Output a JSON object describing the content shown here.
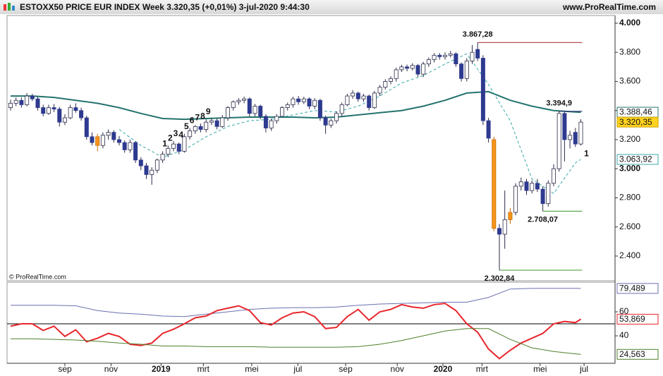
{
  "header": {
    "title": "ESTOXX50 PRICE EUR INDEX Week 3.320,35 (+0,01%) 3-jul-2020 9:44:30",
    "site": "www.ProRealTime.com"
  },
  "chart_data": [
    {
      "type": "candlestick",
      "watermark": "© ProRealTime.com",
      "xlim": [
        -0.65,
        111.3
      ],
      "ylim": [
        2230,
        4053
      ],
      "yticks": [
        {
          "value": 2400,
          "label": "2.400"
        },
        {
          "value": 2600,
          "label": "2.600"
        },
        {
          "value": 2800,
          "label": "2.800"
        },
        {
          "value": 3000,
          "label": "3.000"
        },
        {
          "value": 3200,
          "label": "3.200"
        },
        {
          "value": 3400,
          "label": "3.400"
        },
        {
          "value": 3600,
          "label": "3.600"
        },
        {
          "value": 3800,
          "label": "3.800"
        },
        {
          "value": 4000,
          "label": "4.000"
        }
      ],
      "up_color": "#ffffff",
      "down_color": "#2e3a8f",
      "highlight_color": "#f7941d",
      "highlight": [
        16,
        89,
        92
      ],
      "last_label": "3.320,35",
      "candles": [
        [
          3420,
          3475,
          3400,
          3450
        ],
        [
          3450,
          3490,
          3430,
          3470
        ],
        [
          3470,
          3490,
          3420,
          3440
        ],
        [
          3440,
          3520,
          3430,
          3500
        ],
        [
          3500,
          3515,
          3465,
          3480
        ],
        [
          3480,
          3495,
          3400,
          3420
        ],
        [
          3420,
          3440,
          3360,
          3380
        ],
        [
          3380,
          3440,
          3370,
          3420
        ],
        [
          3420,
          3445,
          3390,
          3410
        ],
        [
          3410,
          3425,
          3290,
          3320
        ],
        [
          3320,
          3375,
          3300,
          3350
        ],
        [
          3350,
          3440,
          3340,
          3420
        ],
        [
          3420,
          3450,
          3385,
          3400
        ],
        [
          3400,
          3420,
          3330,
          3350
        ],
        [
          3350,
          3365,
          3200,
          3220
        ],
        [
          3220,
          3250,
          3160,
          3180
        ],
        [
          3220,
          3240,
          3120,
          3160
        ],
        [
          3160,
          3250,
          3140,
          3230
        ],
        [
          3230,
          3270,
          3200,
          3250
        ],
        [
          3250,
          3265,
          3180,
          3200
        ],
        [
          3200,
          3225,
          3160,
          3180
        ],
        [
          3180,
          3195,
          3110,
          3130
        ],
        [
          3130,
          3200,
          3110,
          3180
        ],
        [
          3180,
          3190,
          3040,
          3060
        ],
        [
          3060,
          3080,
          2990,
          3020
        ],
        [
          3020,
          3040,
          2930,
          2960
        ],
        [
          2960,
          3010,
          2890,
          2990
        ],
        [
          2990,
          3070,
          2970,
          3060
        ],
        [
          3060,
          3120,
          3040,
          3100
        ],
        [
          3100,
          3160,
          3080,
          3140
        ],
        [
          3140,
          3190,
          3120,
          3170
        ],
        [
          3170,
          3180,
          3100,
          3120
        ],
        [
          3120,
          3240,
          3110,
          3220
        ],
        [
          3220,
          3280,
          3200,
          3260
        ],
        [
          3260,
          3300,
          3240,
          3290
        ],
        [
          3290,
          3310,
          3250,
          3270
        ],
        [
          3270,
          3340,
          3250,
          3320
        ],
        [
          3320,
          3350,
          3300,
          3330
        ],
        [
          3330,
          3345,
          3270,
          3290
        ],
        [
          3290,
          3370,
          3280,
          3350
        ],
        [
          3350,
          3430,
          3330,
          3420
        ],
        [
          3420,
          3470,
          3400,
          3460
        ],
        [
          3460,
          3485,
          3440,
          3470
        ],
        [
          3470,
          3495,
          3450,
          3480
        ],
        [
          3480,
          3490,
          3360,
          3380
        ],
        [
          3380,
          3445,
          3360,
          3430
        ],
        [
          3430,
          3440,
          3340,
          3360
        ],
        [
          3360,
          3375,
          3250,
          3280
        ],
        [
          3280,
          3345,
          3260,
          3330
        ],
        [
          3330,
          3375,
          3310,
          3360
        ],
        [
          3360,
          3430,
          3350,
          3420
        ],
        [
          3420,
          3455,
          3400,
          3440
        ],
        [
          3440,
          3495,
          3420,
          3480
        ],
        [
          3480,
          3500,
          3440,
          3460
        ],
        [
          3460,
          3495,
          3445,
          3480
        ],
        [
          3480,
          3490,
          3410,
          3430
        ],
        [
          3430,
          3485,
          3410,
          3470
        ],
        [
          3470,
          3480,
          3330,
          3350
        ],
        [
          3350,
          3365,
          3240,
          3300
        ],
        [
          3300,
          3345,
          3280,
          3330
        ],
        [
          3330,
          3395,
          3310,
          3380
        ],
        [
          3380,
          3455,
          3360,
          3440
        ],
        [
          3440,
          3515,
          3430,
          3500
        ],
        [
          3500,
          3540,
          3480,
          3520
        ],
        [
          3520,
          3530,
          3460,
          3480
        ],
        [
          3480,
          3515,
          3460,
          3500
        ],
        [
          3500,
          3510,
          3400,
          3420
        ],
        [
          3420,
          3535,
          3410,
          3520
        ],
        [
          3520,
          3575,
          3500,
          3560
        ],
        [
          3560,
          3615,
          3545,
          3600
        ],
        [
          3600,
          3635,
          3580,
          3620
        ],
        [
          3620,
          3695,
          3600,
          3680
        ],
        [
          3680,
          3715,
          3665,
          3700
        ],
        [
          3700,
          3715,
          3670,
          3690
        ],
        [
          3690,
          3725,
          3675,
          3710
        ],
        [
          3710,
          3720,
          3630,
          3650
        ],
        [
          3650,
          3735,
          3630,
          3720
        ],
        [
          3720,
          3765,
          3700,
          3750
        ],
        [
          3750,
          3795,
          3730,
          3780
        ],
        [
          3780,
          3795,
          3750,
          3770
        ],
        [
          3770,
          3800,
          3750,
          3780
        ],
        [
          3780,
          3810,
          3765,
          3790
        ],
        [
          3790,
          3800,
          3700,
          3720
        ],
        [
          3720,
          3730,
          3600,
          3620
        ],
        [
          3620,
          3760,
          3600,
          3740
        ],
        [
          3740,
          3850,
          3720,
          3800
        ],
        [
          3820,
          3867.28,
          3740,
          3760
        ],
        [
          3760,
          3780,
          3300,
          3330
        ],
        [
          3330,
          3350,
          3180,
          3210
        ],
        [
          3200,
          3220,
          2570,
          2590
        ],
        [
          2590,
          2620,
          2302.84,
          2550
        ],
        [
          2550,
          2850,
          2450,
          2650
        ],
        [
          2650,
          2730,
          2620,
          2700
        ],
        [
          2700,
          2900,
          2680,
          2880
        ],
        [
          2880,
          2940,
          2850,
          2910
        ],
        [
          2910,
          2930,
          2820,
          2850
        ],
        [
          2850,
          2920,
          2830,
          2900
        ],
        [
          2900,
          2930,
          2840,
          2860
        ],
        [
          2860,
          2880,
          2708.07,
          2760
        ],
        [
          2760,
          2920,
          2740,
          2900
        ],
        [
          2900,
          3030,
          2880,
          3000
        ],
        [
          3000,
          3394.9,
          2980,
          3380
        ],
        [
          3380,
          3390,
          3050,
          3200
        ],
        [
          3200,
          3260,
          3140,
          3230
        ],
        [
          3250,
          3280,
          3150,
          3170
        ],
        [
          3170,
          3340,
          3160,
          3320.35
        ]
      ],
      "series": [
        {
          "color": "#23736e",
          "width": 2,
          "last_label": "3.388,46",
          "x": [
            0,
            4,
            8,
            12,
            16,
            20,
            24,
            28,
            32,
            36,
            40,
            44,
            48,
            52,
            56,
            60,
            64,
            68,
            72,
            76,
            80,
            84,
            88,
            92,
            96,
            100,
            104,
            105
          ],
          "values": [
            3500,
            3500,
            3490,
            3470,
            3450,
            3420,
            3380,
            3345,
            3340,
            3345,
            3350,
            3355,
            3355,
            3355,
            3350,
            3355,
            3370,
            3385,
            3400,
            3430,
            3470,
            3520,
            3530,
            3470,
            3430,
            3400,
            3390,
            3388.46
          ]
        },
        {
          "color": "#3aa8a8",
          "width": 1,
          "dashed": true,
          "last_label": "3.063,92",
          "x": [
            20,
            24,
            28,
            32,
            36,
            40,
            44,
            48,
            52,
            56,
            60,
            64,
            68,
            72,
            76,
            80,
            84,
            88,
            92,
            96,
            100,
            104,
            105
          ],
          "values": [
            3270,
            3160,
            3080,
            3130,
            3220,
            3290,
            3330,
            3340,
            3370,
            3400,
            3390,
            3430,
            3500,
            3590,
            3640,
            3720,
            3790,
            3580,
            3330,
            2930,
            2830,
            3040,
            3063.92
          ]
        }
      ],
      "levels": [
        {
          "value": 3867.28,
          "label": "3.867,28",
          "from": 86,
          "color": "#a0222a",
          "text_color": "#2d2d6e"
        },
        {
          "value": 3394.9,
          "label": "3.394,9",
          "from": 101,
          "color": "#2d2d6e",
          "text_color": "#2d2d6e"
        },
        {
          "value": 2708.07,
          "label": "2.708,07",
          "from": 98,
          "color": "#3c9a2c",
          "text_color": "#2d2d6e"
        },
        {
          "value": 2302.84,
          "label": "2.302,84",
          "from": 90,
          "color": "#3c9a2c",
          "text_color": "#2d2d6e"
        }
      ],
      "counts": [
        {
          "start": 28,
          "values": [
            1,
            2,
            3,
            4,
            5,
            6,
            7,
            8,
            9
          ],
          "color": "#3a3f9a",
          "position": "above"
        },
        {
          "start": 105,
          "values": [
            1
          ],
          "color": "#e8262c",
          "position": "below"
        }
      ]
    },
    {
      "type": "line",
      "xlim": [
        -0.65,
        111.3
      ],
      "ylim": [
        17.1,
        84.7
      ],
      "yticks": [
        40,
        60
      ],
      "ref_line": 50,
      "xticks": [
        {
          "value": 10,
          "label": "sep"
        },
        {
          "value": 18.5,
          "label": "nov"
        },
        {
          "value": 27.7,
          "label": "2019"
        },
        {
          "value": 35.5,
          "label": "mrt"
        },
        {
          "value": 44.4,
          "label": "mei"
        },
        {
          "value": 52.9,
          "label": "jul"
        },
        {
          "value": 61.7,
          "label": "sep"
        },
        {
          "value": 71.2,
          "label": "nov"
        },
        {
          "value": 79.6,
          "label": "2020"
        },
        {
          "value": 86.8,
          "label": "mrt"
        },
        {
          "value": 97.5,
          "label": "mei"
        },
        {
          "value": 105.6,
          "label": "jul"
        }
      ],
      "series": [
        {
          "color": "#6b6fb0",
          "last_label": "79,489",
          "x": [
            0,
            4,
            8,
            12,
            16,
            20,
            24,
            28,
            32,
            36,
            40,
            44,
            48,
            52,
            56,
            60,
            64,
            68,
            72,
            76,
            80,
            84,
            88,
            92,
            96,
            100,
            104,
            105
          ],
          "values": [
            65.5,
            65.5,
            65.5,
            65,
            61,
            59,
            58,
            56.5,
            56,
            58,
            60,
            62,
            63,
            63.5,
            63.5,
            64,
            65.5,
            66.5,
            67,
            67.5,
            68,
            68,
            72,
            79,
            79.5,
            79.5,
            79.5,
            79.489
          ]
        },
        {
          "color": "#e8262c",
          "width": 2,
          "last_label": "53,869",
          "x": [
            0,
            2,
            4,
            6,
            8,
            10,
            12,
            14,
            16,
            18,
            20,
            22,
            24,
            26,
            28,
            30,
            32,
            34,
            36,
            38,
            40,
            42,
            44,
            46,
            48,
            50,
            52,
            54,
            56,
            58,
            60,
            62,
            64,
            66,
            68,
            70,
            72,
            74,
            76,
            78,
            80,
            82,
            84,
            86,
            88,
            90,
            92,
            94,
            96,
            98,
            100,
            102,
            104,
            105
          ],
          "values": [
            48,
            50,
            50,
            44.5,
            48,
            39.5,
            45,
            35,
            38,
            42,
            39.5,
            33,
            32,
            34,
            42,
            45.5,
            50,
            55,
            56.5,
            61,
            63,
            65,
            61,
            51,
            49,
            55,
            59,
            60,
            56,
            46,
            47,
            56,
            62,
            53,
            60,
            62,
            66,
            64,
            63,
            66,
            67,
            61,
            50,
            43,
            29,
            21,
            28,
            34,
            38,
            42,
            50,
            52,
            51,
            53.869
          ]
        },
        {
          "color": "#4f7f2a",
          "last_label": "24,563",
          "x": [
            0,
            4,
            8,
            12,
            16,
            20,
            24,
            28,
            32,
            36,
            40,
            44,
            48,
            52,
            56,
            60,
            64,
            68,
            72,
            76,
            80,
            84,
            88,
            92,
            96,
            100,
            104,
            105
          ],
          "values": [
            37.5,
            37.5,
            37,
            36.5,
            35.5,
            34,
            33,
            31.5,
            31.5,
            31,
            31,
            31,
            30.5,
            30.5,
            30.5,
            30.5,
            31,
            33,
            36,
            40,
            44,
            46,
            46,
            37,
            30,
            27,
            25,
            24.563
          ]
        }
      ]
    }
  ]
}
